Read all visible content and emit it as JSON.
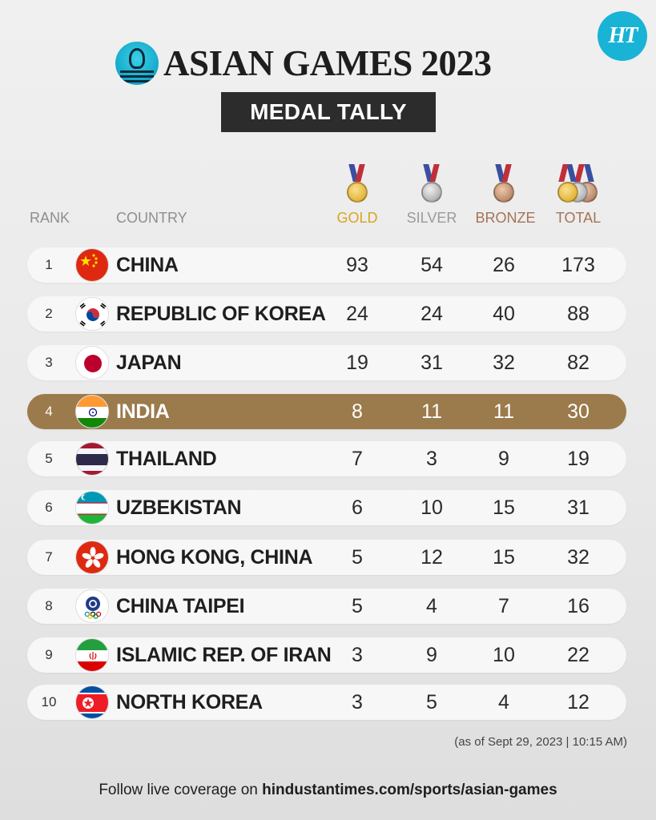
{
  "brand": {
    "logo_text": "HT"
  },
  "header": {
    "title": "ASIAN GAMES 2023",
    "subtitle": "MEDAL TALLY"
  },
  "columns": {
    "rank": "RANK",
    "country": "COUNTRY",
    "gold": "GOLD",
    "silver": "SILVER",
    "bronze": "BRONZE",
    "total": "TOTAL"
  },
  "colors": {
    "gold": "#d9a520",
    "silver": "#9a9a9a",
    "bronze": "#a57357",
    "highlight_row": "#9b7a4c",
    "brand_teal": "#19b3d6"
  },
  "rows": [
    {
      "rank": "1",
      "country": "CHINA",
      "flag": "china-flag-icon",
      "gold": "93",
      "silver": "54",
      "bronze": "26",
      "total": "173"
    },
    {
      "rank": "2",
      "country": "REPUBLIC OF KOREA",
      "flag": "south-korea-flag-icon",
      "gold": "24",
      "silver": "24",
      "bronze": "40",
      "total": "88"
    },
    {
      "rank": "3",
      "country": "JAPAN",
      "flag": "japan-flag-icon",
      "gold": "19",
      "silver": "31",
      "bronze": "32",
      "total": "82"
    },
    {
      "rank": "4",
      "country": "INDIA",
      "flag": "india-flag-icon",
      "gold": "8",
      "silver": "11",
      "bronze": "11",
      "total": "30",
      "highlight": true
    },
    {
      "rank": "5",
      "country": "THAILAND",
      "flag": "thailand-flag-icon",
      "gold": "7",
      "silver": "3",
      "bronze": "9",
      "total": "19"
    },
    {
      "rank": "6",
      "country": "UZBEKISTAN",
      "flag": "uzbekistan-flag-icon",
      "gold": "6",
      "silver": "10",
      "bronze": "15",
      "total": "31"
    },
    {
      "rank": "7",
      "country": "HONG KONG, CHINA",
      "flag": "hong-kong-flag-icon",
      "gold": "5",
      "silver": "12",
      "bronze": "15",
      "total": "32"
    },
    {
      "rank": "8",
      "country": "CHINA TAIPEI",
      "flag": "chinese-taipei-flag-icon",
      "gold": "5",
      "silver": "4",
      "bronze": "7",
      "total": "16"
    },
    {
      "rank": "9",
      "country": "ISLAMIC REP. OF IRAN",
      "flag": "iran-flag-icon",
      "gold": "3",
      "silver": "9",
      "bronze": "10",
      "total": "22"
    },
    {
      "rank": "10",
      "country": "NORTH KOREA",
      "flag": "north-korea-flag-icon",
      "gold": "3",
      "silver": "5",
      "bronze": "4",
      "total": "12"
    }
  ],
  "as_of": "(as of Sept 29, 2023 | 10:15 AM)",
  "footer": {
    "prefix": "Follow live coverage on ",
    "link": "hindustantimes.com/sports/asian-games"
  }
}
